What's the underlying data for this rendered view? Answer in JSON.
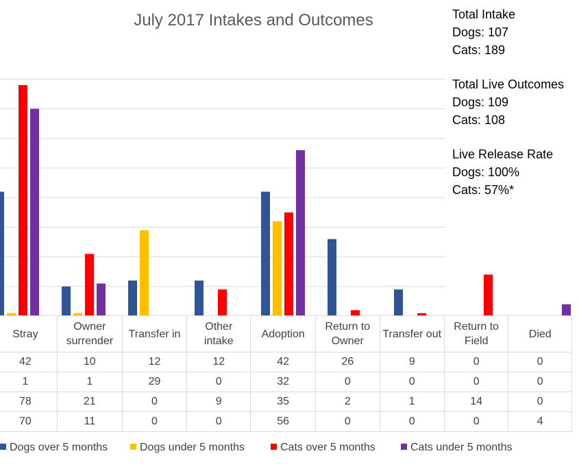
{
  "chart_data": {
    "type": "bar",
    "title": "July 2017 Intakes and Outcomes",
    "categories": [
      "Stray",
      "Owner surrender",
      "Transfer in",
      "Other intake",
      "Adoption",
      "Return to Owner",
      "Transfer out",
      "Return to Field",
      "Died"
    ],
    "category_lines": [
      [
        "Stray"
      ],
      [
        "Owner",
        "surrender"
      ],
      [
        "Transfer in"
      ],
      [
        "Other",
        "intake"
      ],
      [
        "Adoption"
      ],
      [
        "Return to",
        "Owner"
      ],
      [
        "Transfer out"
      ],
      [
        "Return to",
        "Field"
      ],
      [
        "Died"
      ]
    ],
    "series": [
      {
        "name": "Dogs over 5 months",
        "color": "#2f5597",
        "values": [
          42,
          10,
          12,
          12,
          42,
          26,
          9,
          0,
          0
        ]
      },
      {
        "name": "Dogs under 5 months",
        "color": "#ffc000",
        "values": [
          1,
          1,
          29,
          0,
          32,
          0,
          0,
          0,
          0
        ]
      },
      {
        "name": "Cats over 5 months",
        "color": "#ff0000",
        "values": [
          78,
          21,
          0,
          9,
          35,
          2,
          1,
          14,
          0
        ]
      },
      {
        "name": "Cats under 5 months",
        "color": "#7030a0",
        "values": [
          70,
          11,
          0,
          0,
          56,
          0,
          0,
          0,
          4
        ]
      }
    ],
    "ylim": [
      0,
      80
    ],
    "y_gridline_step": 10,
    "grid": true,
    "data_table": true,
    "legend_position": "bottom"
  },
  "stats": {
    "intake": {
      "heading": "Total Intake",
      "dogs": "Dogs: 107",
      "cats": "Cats: 189"
    },
    "live_outcomes": {
      "heading": "Total Live Outcomes",
      "dogs": "Dogs: 109",
      "cats": "Cats: 108"
    },
    "release_rate": {
      "heading": "Live Release Rate",
      "dogs": "Dogs: 100%",
      "cats": "Cats: 57%*"
    }
  }
}
